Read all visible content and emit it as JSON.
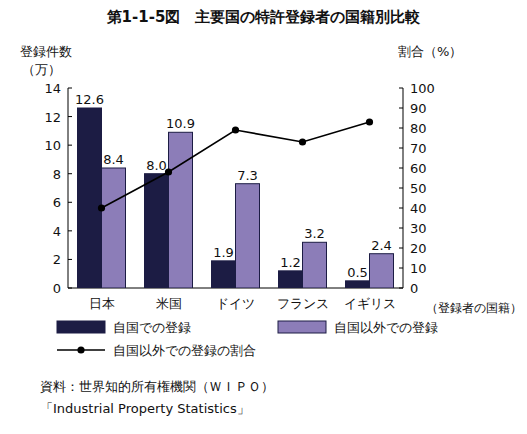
{
  "chart_data": {
    "type": "bar",
    "title": "第1-1-5図　主要国の特許登録者の国籍別比較",
    "y_label": "登録件数",
    "y_unit": "（万）",
    "y2_label": "割合（%）",
    "x_label": "（登録者の国籍）",
    "categories": [
      "日本",
      "米国",
      "ドイツ",
      "フランス",
      "イギリス"
    ],
    "series": [
      {
        "name": "自国での登録",
        "type": "bar",
        "color": "#1c1c44",
        "values": [
          12.6,
          8.0,
          1.9,
          1.2,
          0.5
        ],
        "value_labels": [
          "12.6",
          "8.0",
          "1.9",
          "1.2",
          "0.5"
        ],
        "data_labels": true
      },
      {
        "name": "自国以外での登録",
        "type": "bar",
        "color": "#8c7db8",
        "values": [
          8.4,
          10.9,
          7.3,
          3.2,
          2.4
        ],
        "data_labels": true
      },
      {
        "name": "自国以外での登録の割合",
        "type": "line",
        "axis": "y2",
        "color": "#000000",
        "marker": "circle",
        "line_style": "solid",
        "values": [
          40,
          58,
          79,
          73,
          83
        ]
      }
    ],
    "ylim": [
      0,
      14
    ],
    "yticks": [
      0,
      2,
      4,
      6,
      8,
      10,
      12,
      14
    ],
    "y2lim": [
      0,
      100
    ],
    "y2ticks": [
      0,
      10,
      20,
      30,
      40,
      50,
      60,
      70,
      80,
      90,
      100
    ],
    "grid": false,
    "legend": "bottom",
    "source": [
      "資料：世界知的所有権機関（ＷＩＰＯ）",
      "「Industrial Property Statistics」"
    ]
  }
}
